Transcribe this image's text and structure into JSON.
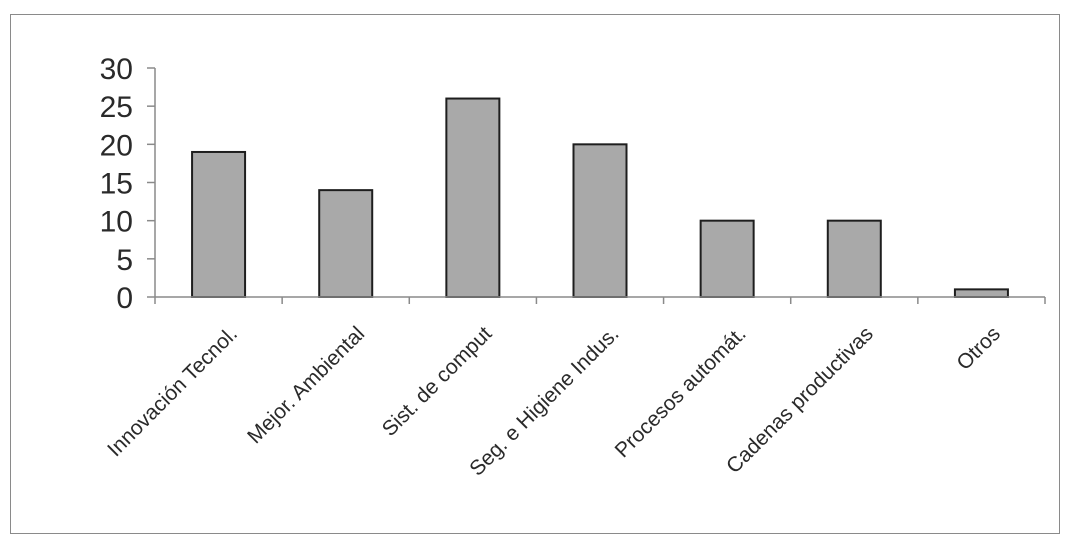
{
  "chart_data": {
    "type": "bar",
    "categories": [
      "Innovación Tecnol.",
      "Mejor. Ambiental",
      "Sist. de comput",
      "Seg. e Higiene Indus.",
      "Procesos automát.",
      "Cadenas productivas",
      "Otros"
    ],
    "values": [
      19,
      14,
      26,
      20,
      10,
      10,
      1
    ],
    "ylim": [
      0,
      30
    ],
    "yticks": [
      0,
      5,
      10,
      15,
      20,
      25,
      30
    ],
    "title": "",
    "xlabel": "",
    "ylabel": "",
    "grid": false,
    "legend": "none",
    "bar_color": "#a9a9a9",
    "bar_edge_color": "#1e1e1e",
    "axis_color": "#8a8a8a"
  }
}
